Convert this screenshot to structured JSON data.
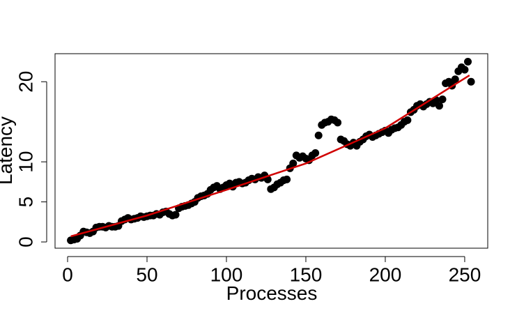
{
  "chart_data": {
    "type": "scatter",
    "xlabel": "Processes",
    "ylabel": "Latency",
    "xlim": [
      -7.9,
      264.5
    ],
    "ylim": [
      -0.78,
      23.5
    ],
    "xticks": [
      0,
      50,
      100,
      150,
      200,
      250
    ],
    "yticks": [
      0,
      5,
      10,
      20
    ],
    "grid": false,
    "points": {
      "color": "#000000",
      "x": [
        2,
        4,
        6,
        8,
        10,
        12,
        14,
        16,
        18,
        20,
        22,
        24,
        26,
        28,
        30,
        32,
        34,
        36,
        38,
        40,
        42,
        44,
        46,
        48,
        50,
        52,
        54,
        56,
        58,
        60,
        62,
        64,
        66,
        68,
        70,
        72,
        74,
        76,
        78,
        80,
        82,
        84,
        86,
        88,
        90,
        92,
        94,
        96,
        98,
        100,
        102,
        104,
        106,
        108,
        110,
        112,
        114,
        116,
        118,
        120,
        122,
        124,
        126,
        128,
        130,
        132,
        134,
        136,
        138,
        140,
        142,
        144,
        146,
        148,
        150,
        152,
        154,
        156,
        158,
        160,
        162,
        164,
        166,
        168,
        170,
        172,
        174,
        176,
        178,
        180,
        182,
        184,
        186,
        188,
        190,
        192,
        194,
        196,
        198,
        200,
        202,
        204,
        206,
        208,
        210,
        212,
        214,
        216,
        218,
        220,
        222,
        224,
        226,
        228,
        230,
        232,
        234,
        236,
        238,
        240,
        242,
        244,
        246,
        248,
        250,
        252,
        254
      ],
      "y": [
        0.2,
        0.3,
        0.4,
        0.8,
        1.3,
        1.2,
        1.1,
        1.3,
        1.8,
        1.9,
        1.9,
        1.8,
        2.0,
        1.9,
        1.9,
        2.0,
        2.6,
        2.8,
        3.0,
        2.8,
        2.9,
        3.0,
        3.2,
        3.1,
        3.2,
        3.3,
        3.3,
        3.5,
        3.4,
        3.7,
        3.8,
        3.5,
        3.3,
        3.4,
        4.2,
        4.4,
        4.5,
        4.6,
        4.8,
        5.0,
        5.5,
        5.7,
        5.8,
        6.0,
        6.5,
        6.8,
        7.0,
        6.6,
        6.8,
        7.1,
        7.3,
        6.9,
        7.4,
        7.5,
        7.3,
        7.4,
        7.7,
        7.9,
        7.8,
        8.1,
        8.0,
        8.3,
        7.8,
        6.6,
        6.8,
        7.2,
        7.4,
        7.7,
        7.8,
        9.2,
        9.8,
        10.8,
        10.5,
        10.7,
        10.4,
        10.2,
        10.8,
        11.1,
        13.3,
        14.6,
        14.9,
        15.0,
        15.3,
        15.2,
        14.9,
        12.8,
        12.6,
        12.2,
        12.0,
        12.4,
        12.0,
        12.5,
        12.8,
        13.2,
        13.4,
        13.1,
        13.3,
        13.5,
        13.7,
        13.9,
        13.6,
        14.0,
        14.2,
        14.3,
        14.6,
        15.0,
        15.2,
        16.2,
        16.5,
        17.0,
        17.2,
        16.9,
        17.2,
        17.5,
        17.3,
        17.7,
        17.0,
        17.8,
        19.8,
        20.0,
        19.5,
        20.3,
        21.3,
        21.8,
        21.5,
        22.5,
        20.0
      ]
    },
    "fit": {
      "color": "#d00000",
      "x": [
        2,
        50,
        100,
        150,
        200,
        253
      ],
      "y": [
        0.7,
        3.3,
        6.5,
        9.8,
        14.2,
        20.8
      ]
    }
  }
}
